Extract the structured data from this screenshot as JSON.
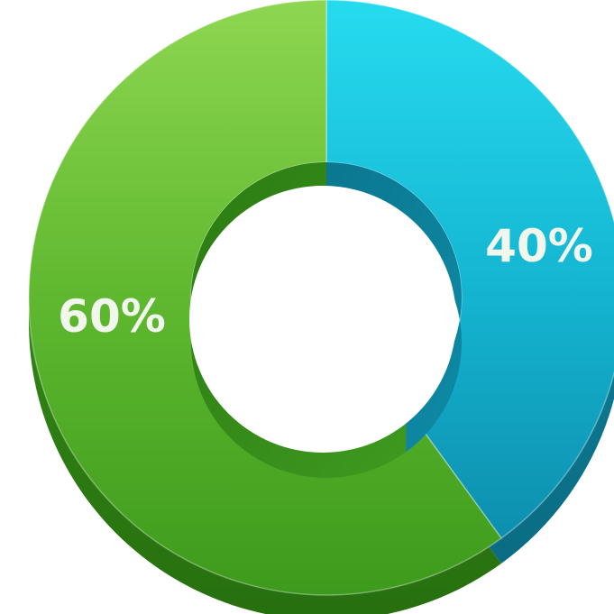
{
  "chart_data": {
    "type": "pie",
    "style": "3d-donut",
    "title": "",
    "slices": [
      {
        "label": "40%",
        "value": 40,
        "color": "#19b8d2"
      },
      {
        "label": "60%",
        "value": 60,
        "color": "#5bb52e"
      }
    ],
    "legend": "none",
    "grid": false
  },
  "colors": {
    "background": "#ffffff",
    "label_text": "#f2f7ee",
    "blue_light": "#25d6ec",
    "blue_dark": "#0e7f99",
    "green_light": "#86d24a",
    "green_dark": "#2f8a15"
  }
}
